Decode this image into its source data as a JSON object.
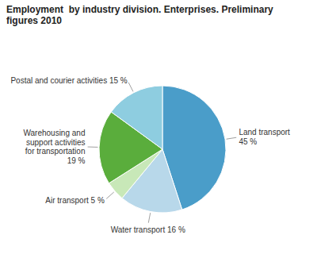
{
  "chart_data": {
    "type": "pie",
    "title": "Employment  by industry division. Enterprises. Preliminary\nfigures 2010",
    "categories": [
      "Land transport\n45 %",
      "Water transport 16 %",
      "Air transport 5 %",
      "Warehousing and\nsupport activities\nfor transportation\n19 %",
      "Postal and courier activities 15 %"
    ],
    "values": [
      45,
      16,
      5,
      19,
      15
    ],
    "colors": [
      "#4a9dc9",
      "#b8d8ea",
      "#c8e8b8",
      "#5aad3c",
      "#8ecde0"
    ]
  }
}
